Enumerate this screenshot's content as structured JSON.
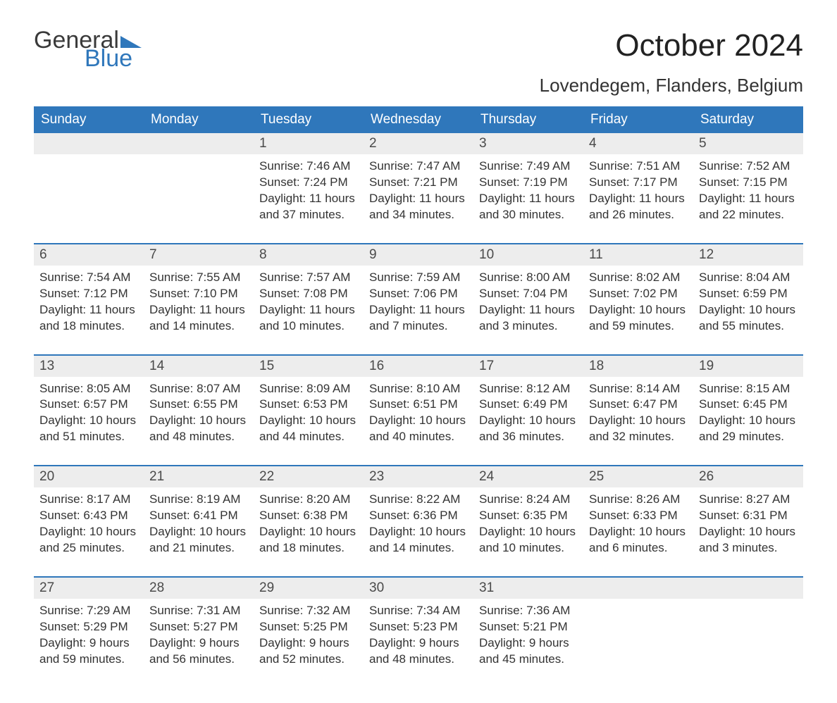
{
  "logo": {
    "general": "General",
    "blue": "Blue",
    "triangle_color": "#2f77bb"
  },
  "title": "October 2024",
  "location": "Lovendegem, Flanders, Belgium",
  "colors": {
    "header_bg": "#2f77bb",
    "header_text": "#ffffff",
    "daynum_bg": "#ededed",
    "text": "#333333",
    "page_bg": "#ffffff"
  },
  "fonts": {
    "title_size": 44,
    "location_size": 26,
    "header_size": 19,
    "daynum_size": 19,
    "body_size": 17
  },
  "day_labels": [
    "Sunday",
    "Monday",
    "Tuesday",
    "Wednesday",
    "Thursday",
    "Friday",
    "Saturday"
  ],
  "weeks": [
    [
      null,
      null,
      {
        "n": "1",
        "sr": "Sunrise: 7:46 AM",
        "ss": "Sunset: 7:24 PM",
        "d1": "Daylight: 11 hours",
        "d2": "and 37 minutes."
      },
      {
        "n": "2",
        "sr": "Sunrise: 7:47 AM",
        "ss": "Sunset: 7:21 PM",
        "d1": "Daylight: 11 hours",
        "d2": "and 34 minutes."
      },
      {
        "n": "3",
        "sr": "Sunrise: 7:49 AM",
        "ss": "Sunset: 7:19 PM",
        "d1": "Daylight: 11 hours",
        "d2": "and 30 minutes."
      },
      {
        "n": "4",
        "sr": "Sunrise: 7:51 AM",
        "ss": "Sunset: 7:17 PM",
        "d1": "Daylight: 11 hours",
        "d2": "and 26 minutes."
      },
      {
        "n": "5",
        "sr": "Sunrise: 7:52 AM",
        "ss": "Sunset: 7:15 PM",
        "d1": "Daylight: 11 hours",
        "d2": "and 22 minutes."
      }
    ],
    [
      {
        "n": "6",
        "sr": "Sunrise: 7:54 AM",
        "ss": "Sunset: 7:12 PM",
        "d1": "Daylight: 11 hours",
        "d2": "and 18 minutes."
      },
      {
        "n": "7",
        "sr": "Sunrise: 7:55 AM",
        "ss": "Sunset: 7:10 PM",
        "d1": "Daylight: 11 hours",
        "d2": "and 14 minutes."
      },
      {
        "n": "8",
        "sr": "Sunrise: 7:57 AM",
        "ss": "Sunset: 7:08 PM",
        "d1": "Daylight: 11 hours",
        "d2": "and 10 minutes."
      },
      {
        "n": "9",
        "sr": "Sunrise: 7:59 AM",
        "ss": "Sunset: 7:06 PM",
        "d1": "Daylight: 11 hours",
        "d2": "and 7 minutes."
      },
      {
        "n": "10",
        "sr": "Sunrise: 8:00 AM",
        "ss": "Sunset: 7:04 PM",
        "d1": "Daylight: 11 hours",
        "d2": "and 3 minutes."
      },
      {
        "n": "11",
        "sr": "Sunrise: 8:02 AM",
        "ss": "Sunset: 7:02 PM",
        "d1": "Daylight: 10 hours",
        "d2": "and 59 minutes."
      },
      {
        "n": "12",
        "sr": "Sunrise: 8:04 AM",
        "ss": "Sunset: 6:59 PM",
        "d1": "Daylight: 10 hours",
        "d2": "and 55 minutes."
      }
    ],
    [
      {
        "n": "13",
        "sr": "Sunrise: 8:05 AM",
        "ss": "Sunset: 6:57 PM",
        "d1": "Daylight: 10 hours",
        "d2": "and 51 minutes."
      },
      {
        "n": "14",
        "sr": "Sunrise: 8:07 AM",
        "ss": "Sunset: 6:55 PM",
        "d1": "Daylight: 10 hours",
        "d2": "and 48 minutes."
      },
      {
        "n": "15",
        "sr": "Sunrise: 8:09 AM",
        "ss": "Sunset: 6:53 PM",
        "d1": "Daylight: 10 hours",
        "d2": "and 44 minutes."
      },
      {
        "n": "16",
        "sr": "Sunrise: 8:10 AM",
        "ss": "Sunset: 6:51 PM",
        "d1": "Daylight: 10 hours",
        "d2": "and 40 minutes."
      },
      {
        "n": "17",
        "sr": "Sunrise: 8:12 AM",
        "ss": "Sunset: 6:49 PM",
        "d1": "Daylight: 10 hours",
        "d2": "and 36 minutes."
      },
      {
        "n": "18",
        "sr": "Sunrise: 8:14 AM",
        "ss": "Sunset: 6:47 PM",
        "d1": "Daylight: 10 hours",
        "d2": "and 32 minutes."
      },
      {
        "n": "19",
        "sr": "Sunrise: 8:15 AM",
        "ss": "Sunset: 6:45 PM",
        "d1": "Daylight: 10 hours",
        "d2": "and 29 minutes."
      }
    ],
    [
      {
        "n": "20",
        "sr": "Sunrise: 8:17 AM",
        "ss": "Sunset: 6:43 PM",
        "d1": "Daylight: 10 hours",
        "d2": "and 25 minutes."
      },
      {
        "n": "21",
        "sr": "Sunrise: 8:19 AM",
        "ss": "Sunset: 6:41 PM",
        "d1": "Daylight: 10 hours",
        "d2": "and 21 minutes."
      },
      {
        "n": "22",
        "sr": "Sunrise: 8:20 AM",
        "ss": "Sunset: 6:38 PM",
        "d1": "Daylight: 10 hours",
        "d2": "and 18 minutes."
      },
      {
        "n": "23",
        "sr": "Sunrise: 8:22 AM",
        "ss": "Sunset: 6:36 PM",
        "d1": "Daylight: 10 hours",
        "d2": "and 14 minutes."
      },
      {
        "n": "24",
        "sr": "Sunrise: 8:24 AM",
        "ss": "Sunset: 6:35 PM",
        "d1": "Daylight: 10 hours",
        "d2": "and 10 minutes."
      },
      {
        "n": "25",
        "sr": "Sunrise: 8:26 AM",
        "ss": "Sunset: 6:33 PM",
        "d1": "Daylight: 10 hours",
        "d2": "and 6 minutes."
      },
      {
        "n": "26",
        "sr": "Sunrise: 8:27 AM",
        "ss": "Sunset: 6:31 PM",
        "d1": "Daylight: 10 hours",
        "d2": "and 3 minutes."
      }
    ],
    [
      {
        "n": "27",
        "sr": "Sunrise: 7:29 AM",
        "ss": "Sunset: 5:29 PM",
        "d1": "Daylight: 9 hours",
        "d2": "and 59 minutes."
      },
      {
        "n": "28",
        "sr": "Sunrise: 7:31 AM",
        "ss": "Sunset: 5:27 PM",
        "d1": "Daylight: 9 hours",
        "d2": "and 56 minutes."
      },
      {
        "n": "29",
        "sr": "Sunrise: 7:32 AM",
        "ss": "Sunset: 5:25 PM",
        "d1": "Daylight: 9 hours",
        "d2": "and 52 minutes."
      },
      {
        "n": "30",
        "sr": "Sunrise: 7:34 AM",
        "ss": "Sunset: 5:23 PM",
        "d1": "Daylight: 9 hours",
        "d2": "and 48 minutes."
      },
      {
        "n": "31",
        "sr": "Sunrise: 7:36 AM",
        "ss": "Sunset: 5:21 PM",
        "d1": "Daylight: 9 hours",
        "d2": "and 45 minutes."
      },
      null,
      null
    ]
  ]
}
